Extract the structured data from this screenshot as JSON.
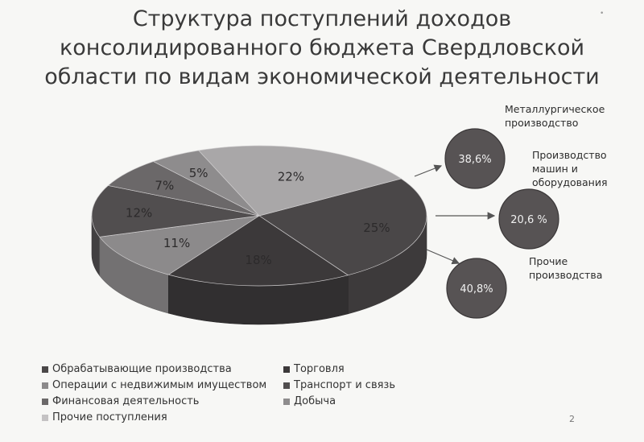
{
  "title_lines": [
    "Структура поступлений доходов",
    "консолидированного бюджета Свердловской",
    "области по видам экономической деятельности"
  ],
  "chart_data": [
    {
      "type": "pie",
      "title": "Структура поступлений доходов консолидированного бюджета Свердловской области по видам экономической деятельности",
      "slices": [
        {
          "name": "Обрабатывающие производства",
          "value": 25,
          "label": "25%",
          "color": "#4a4748"
        },
        {
          "name": "Торговля",
          "value": 18,
          "label": "18%",
          "color": "#3c393a"
        },
        {
          "name": "Операции с недвижимым имуществом",
          "value": 11,
          "label": "11%",
          "color": "#8c8a8b"
        },
        {
          "name": "Транспорт и связь",
          "value": 12,
          "label": "12%",
          "color": "#514e4f"
        },
        {
          "name": "Финансовая деятельность",
          "value": 7,
          "label": "7%",
          "color": "#6b6869"
        },
        {
          "name": "Добыча",
          "value": 5,
          "label": "5%",
          "color": "#8e8c8d"
        },
        {
          "name": "Прочие поступления",
          "value": 22,
          "label": "22%",
          "color": "#a9a7a8"
        }
      ],
      "legend_placement": "bottom"
    },
    {
      "type": "pie",
      "slices": [
        {
          "name": "Металлургическое производство",
          "value": 38.6,
          "label": "38,6%"
        },
        {
          "name": "Производство машин и оборудования",
          "value": 20.6,
          "label": "20,6 %"
        },
        {
          "name": "Прочие производства",
          "value": 40.8,
          "label": "40,8%"
        }
      ]
    }
  ],
  "callouts": [
    {
      "value_label": "38,6%",
      "name_lines": [
        "Металлургическое",
        "производство"
      ]
    },
    {
      "value_label": "20,6 %",
      "name_lines": [
        "Производство",
        "машин и",
        "оборудования"
      ]
    },
    {
      "value_label": "40,8%",
      "name_lines": [
        "Прочие",
        "производства"
      ]
    }
  ],
  "legend": [
    "Обрабатывающие производства",
    "Торговля",
    "Операции с недвижимым имуществом",
    "Транспорт и связь",
    "Финансовая деятельность",
    "Добыча",
    "Прочие поступления"
  ],
  "colors": {
    "circle_fill": "#575354",
    "arrow": "#555555",
    "label_dark": "#2c2a2b"
  },
  "page_number": "2",
  "corner_mark": "•"
}
